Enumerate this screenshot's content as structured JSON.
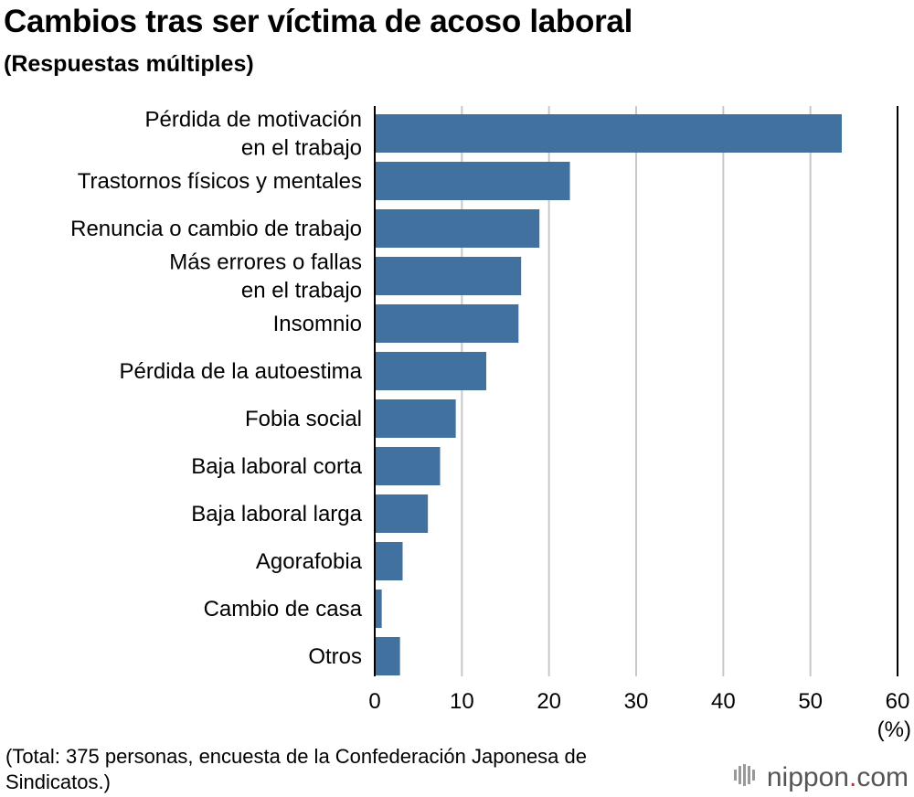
{
  "title": "Cambios tras ser víctima de acoso laboral",
  "subtitle": "(Respuestas múltiples)",
  "footnote": "(Total: 375 personas, encuesta de la Confederación Japonesa de Sindicatos.)",
  "logo": {
    "name": "nippon",
    "dot": ".",
    "tld": "com"
  },
  "colors": {
    "bar": "#41729f",
    "grid": "#c8c8c8",
    "axis": "#000000",
    "logo_accent": "#d9262c"
  },
  "chart_data": {
    "type": "bar",
    "orientation": "horizontal",
    "categories": [
      [
        "Pérdida de motivación",
        "en el trabajo"
      ],
      [
        "Trastornos físicos y mentales"
      ],
      [
        "Renuncia o cambio de trabajo"
      ],
      [
        "Más errores o fallas",
        "en el trabajo"
      ],
      [
        "Insomnio"
      ],
      [
        "Pérdida de la autoestima"
      ],
      [
        "Fobia social"
      ],
      [
        "Baja laboral corta"
      ],
      [
        "Baja laboral larga"
      ],
      [
        "Agorafobia"
      ],
      [
        "Cambio de casa"
      ],
      [
        "Otros"
      ]
    ],
    "values": [
      53.6,
      22.4,
      18.9,
      16.8,
      16.5,
      12.8,
      9.3,
      7.5,
      6.1,
      3.2,
      0.8,
      2.9
    ],
    "xlim": [
      0,
      60
    ],
    "ticks": [
      0,
      10,
      20,
      30,
      40,
      50,
      60
    ],
    "unit": "(%)",
    "grid": true
  }
}
